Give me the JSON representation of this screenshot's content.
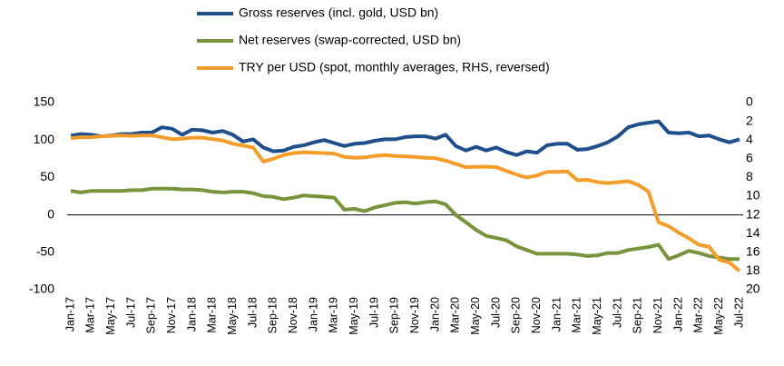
{
  "chart_data": {
    "type": "line",
    "categories": [
      "Jan-17",
      null,
      "Mar-17",
      null,
      "May-17",
      null,
      "Jul-17",
      null,
      "Sep-17",
      null,
      "Nov-17",
      null,
      "Jan-18",
      null,
      "Mar-18",
      null,
      "May-18",
      null,
      "Jul-18",
      null,
      "Sep-18",
      null,
      "Nov-18",
      null,
      "Jan-19",
      null,
      "Mar-19",
      null,
      "May-19",
      null,
      "Jul-19",
      null,
      "Sep-19",
      null,
      "Nov-19",
      null,
      "Jan-20",
      null,
      "Mar-20",
      null,
      "May-20",
      null,
      "Jul-20",
      null,
      "Sep-20",
      null,
      "Nov-20",
      null,
      "Jan-21",
      null,
      "Mar-21",
      null,
      "May-21",
      null,
      "Jul-21",
      null,
      "Sep-21",
      null,
      "Nov-21",
      null,
      "Jan-22",
      null,
      "Mar-22",
      null,
      "May-22",
      null,
      "Jul-22"
    ],
    "series": [
      {
        "name": "Gross reserves (incl. gold, USD bn)",
        "color": "#1f4e8c",
        "axis": "y",
        "values": [
          106,
          108,
          107,
          105,
          106,
          108,
          108,
          110,
          110,
          117,
          115,
          107,
          114,
          113,
          110,
          112,
          107,
          98,
          101,
          90,
          85,
          86,
          91,
          93,
          97,
          100,
          96,
          92,
          95,
          96,
          99,
          101,
          101,
          104,
          105,
          105,
          102,
          107,
          92,
          86,
          91,
          86,
          90,
          84,
          80,
          85,
          83,
          93,
          95,
          95,
          87,
          88,
          92,
          97,
          105,
          117,
          121,
          123,
          125,
          110,
          109,
          110,
          105,
          106,
          101,
          97,
          101
        ]
      },
      {
        "name": "Net reserves (swap-corrected, USD bn)",
        "color": "#77933c",
        "axis": "y",
        "values": [
          32,
          30,
          32,
          32,
          32,
          32,
          33,
          33,
          35,
          35,
          35,
          34,
          34,
          33,
          31,
          30,
          31,
          31,
          29,
          25,
          24,
          21,
          23,
          26,
          25,
          24,
          23,
          7,
          8,
          5,
          10,
          13,
          16,
          17,
          15,
          17,
          18,
          14,
          0,
          -10,
          -20,
          -28,
          -31,
          -34,
          -42,
          -47,
          -52,
          -52,
          -52,
          -52,
          -53,
          -55,
          -54,
          -51,
          -51,
          -47,
          -45,
          -43,
          -40,
          -59,
          -54,
          -48,
          -51,
          -55,
          -57,
          -59,
          -59
        ]
      },
      {
        "name": "TRY per USD (spot, monthly averages, RHS, reversed)",
        "color": "#f59d2a",
        "axis": "y2",
        "values": [
          3.8,
          3.7,
          3.7,
          3.6,
          3.55,
          3.5,
          3.55,
          3.5,
          3.5,
          3.7,
          3.9,
          3.85,
          3.75,
          3.75,
          3.9,
          4.05,
          4.4,
          4.6,
          4.8,
          6.3,
          6.0,
          5.6,
          5.4,
          5.3,
          5.35,
          5.4,
          5.45,
          5.8,
          5.9,
          5.85,
          5.7,
          5.6,
          5.7,
          5.75,
          5.8,
          5.9,
          5.95,
          6.2,
          6.55,
          6.9,
          6.85,
          6.85,
          6.9,
          7.3,
          7.7,
          8.0,
          7.8,
          7.4,
          7.4,
          7.35,
          8.3,
          8.25,
          8.5,
          8.6,
          8.5,
          8.4,
          8.8,
          9.5,
          12.8,
          13.2,
          13.9,
          14.5,
          15.2,
          15.4,
          16.8,
          17.1,
          18.0
        ]
      }
    ],
    "ylim": [
      -100,
      150
    ],
    "yticks": [
      -100,
      -50,
      0,
      50,
      100,
      150
    ],
    "y2lim": [
      0,
      20
    ],
    "y2ticks": [
      0,
      2,
      4,
      6,
      8,
      10,
      12,
      14,
      16,
      18,
      20
    ],
    "y2_reversed": true,
    "zero_line": true,
    "grid": false,
    "legend": "top"
  }
}
